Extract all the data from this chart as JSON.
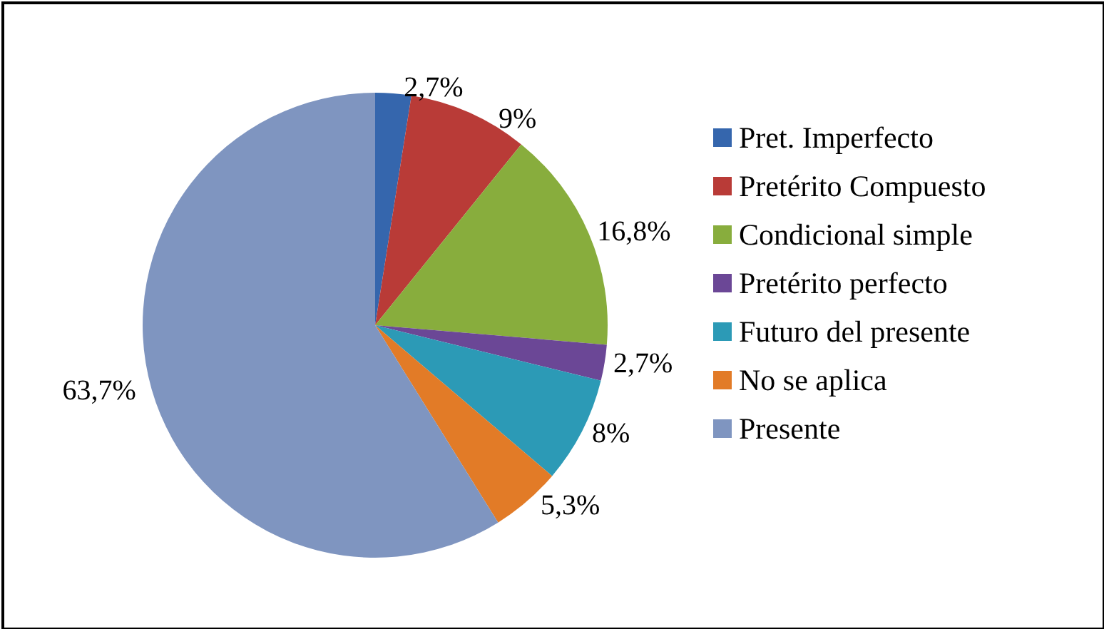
{
  "chart_data": {
    "type": "pie",
    "categories": [
      "Pret. Imperfecto",
      "Pretérito Compuesto",
      "Condicional simple",
      "Pretérito perfecto",
      "Futuro del presente",
      "No se aplica",
      "Presente"
    ],
    "values": [
      2.7,
      9,
      16.8,
      2.7,
      8,
      5.3,
      63.7
    ],
    "value_labels": [
      "2,7%",
      "9%",
      "16,8%",
      "2,7%",
      "8%",
      "5,3%",
      "63,7%"
    ],
    "colors": [
      "#3566ad",
      "#b93b37",
      "#88ad3d",
      "#6b4796",
      "#2c9ab6",
      "#e27b27",
      "#7f95c0"
    ],
    "legend": "right"
  }
}
